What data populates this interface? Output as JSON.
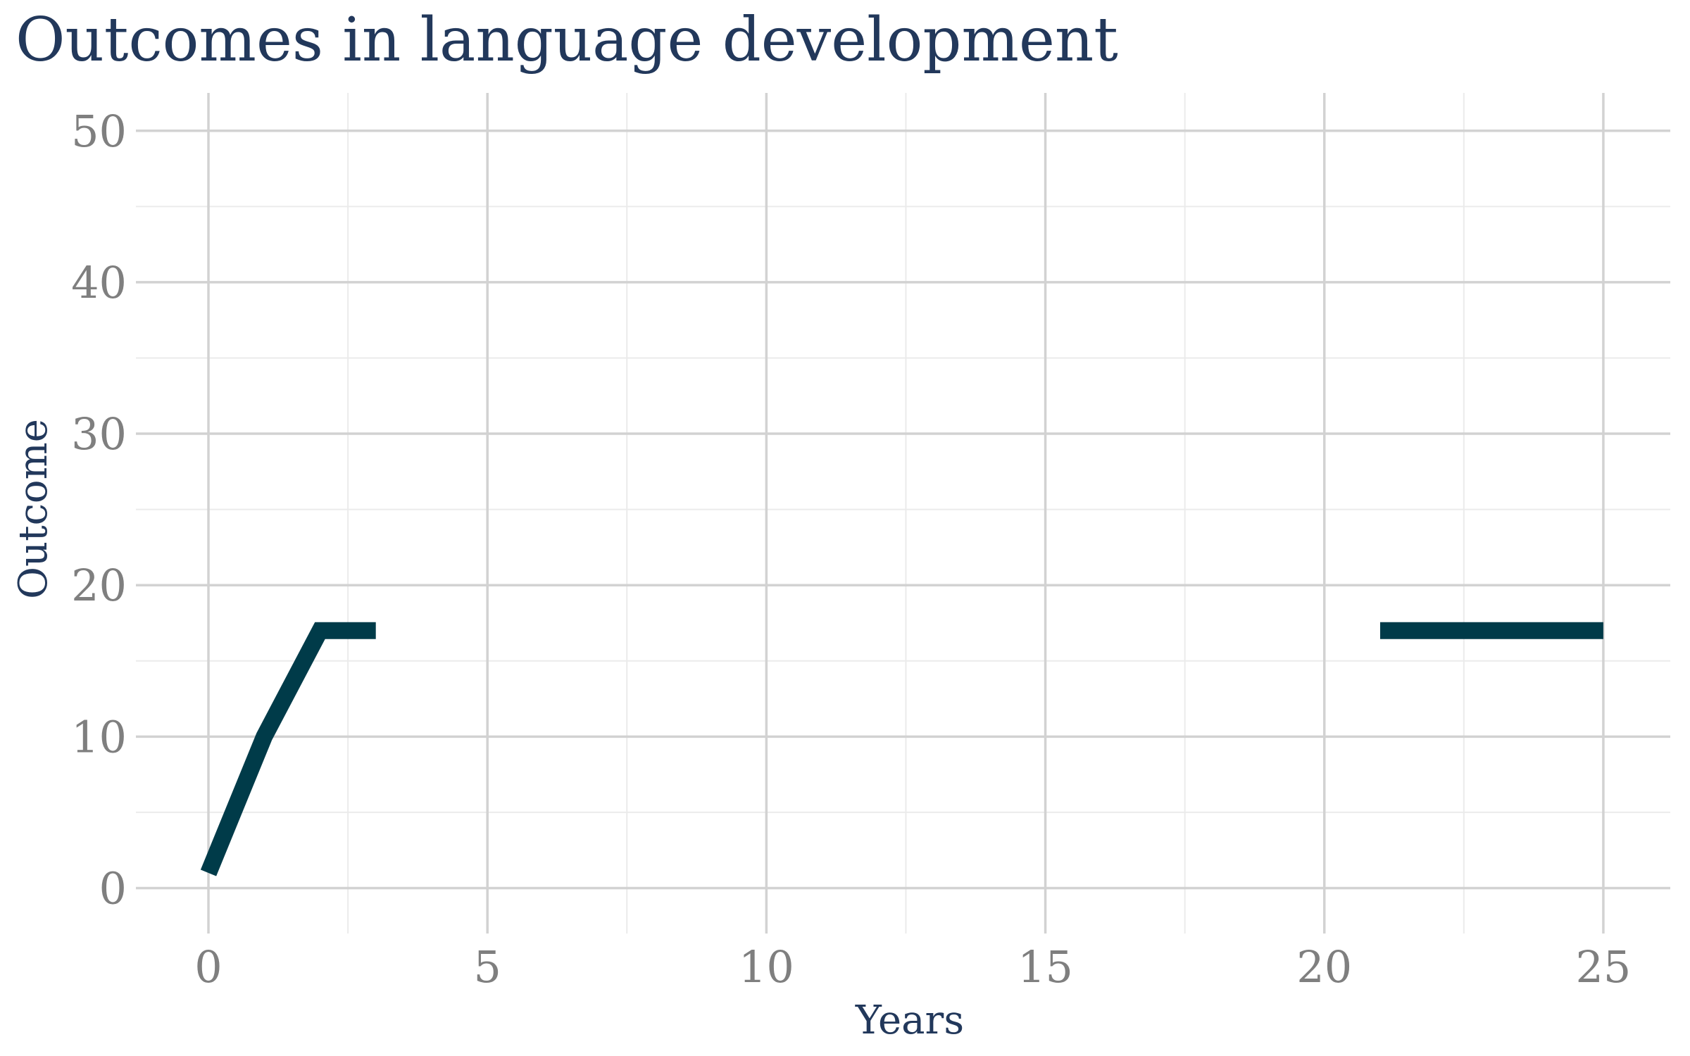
{
  "chart_data": {
    "type": "line",
    "title": "Outcomes in language development",
    "xlabel": "Years",
    "ylabel": "Outcome",
    "xlim": [
      -1.3,
      26.2
    ],
    "ylim": [
      -3,
      52.5
    ],
    "x_ticks": [
      0,
      5,
      10,
      15,
      20,
      25
    ],
    "y_ticks": [
      0,
      10,
      20,
      30,
      40,
      50
    ],
    "x_minor_ticks": [
      2.5,
      7.5,
      12.5,
      17.5,
      22.5
    ],
    "y_minor_ticks": [
      5,
      15,
      25,
      35,
      45
    ],
    "grid": true,
    "legend": "none",
    "series": [
      {
        "color": "#003b49",
        "segments": [
          [
            [
              0,
              1
            ],
            [
              1,
              10
            ],
            [
              2,
              17
            ],
            [
              3,
              17
            ]
          ],
          [
            [
              21,
              17
            ],
            [
              22,
              17
            ],
            [
              23,
              17
            ],
            [
              24,
              17
            ],
            [
              25,
              17
            ]
          ]
        ]
      }
    ]
  }
}
